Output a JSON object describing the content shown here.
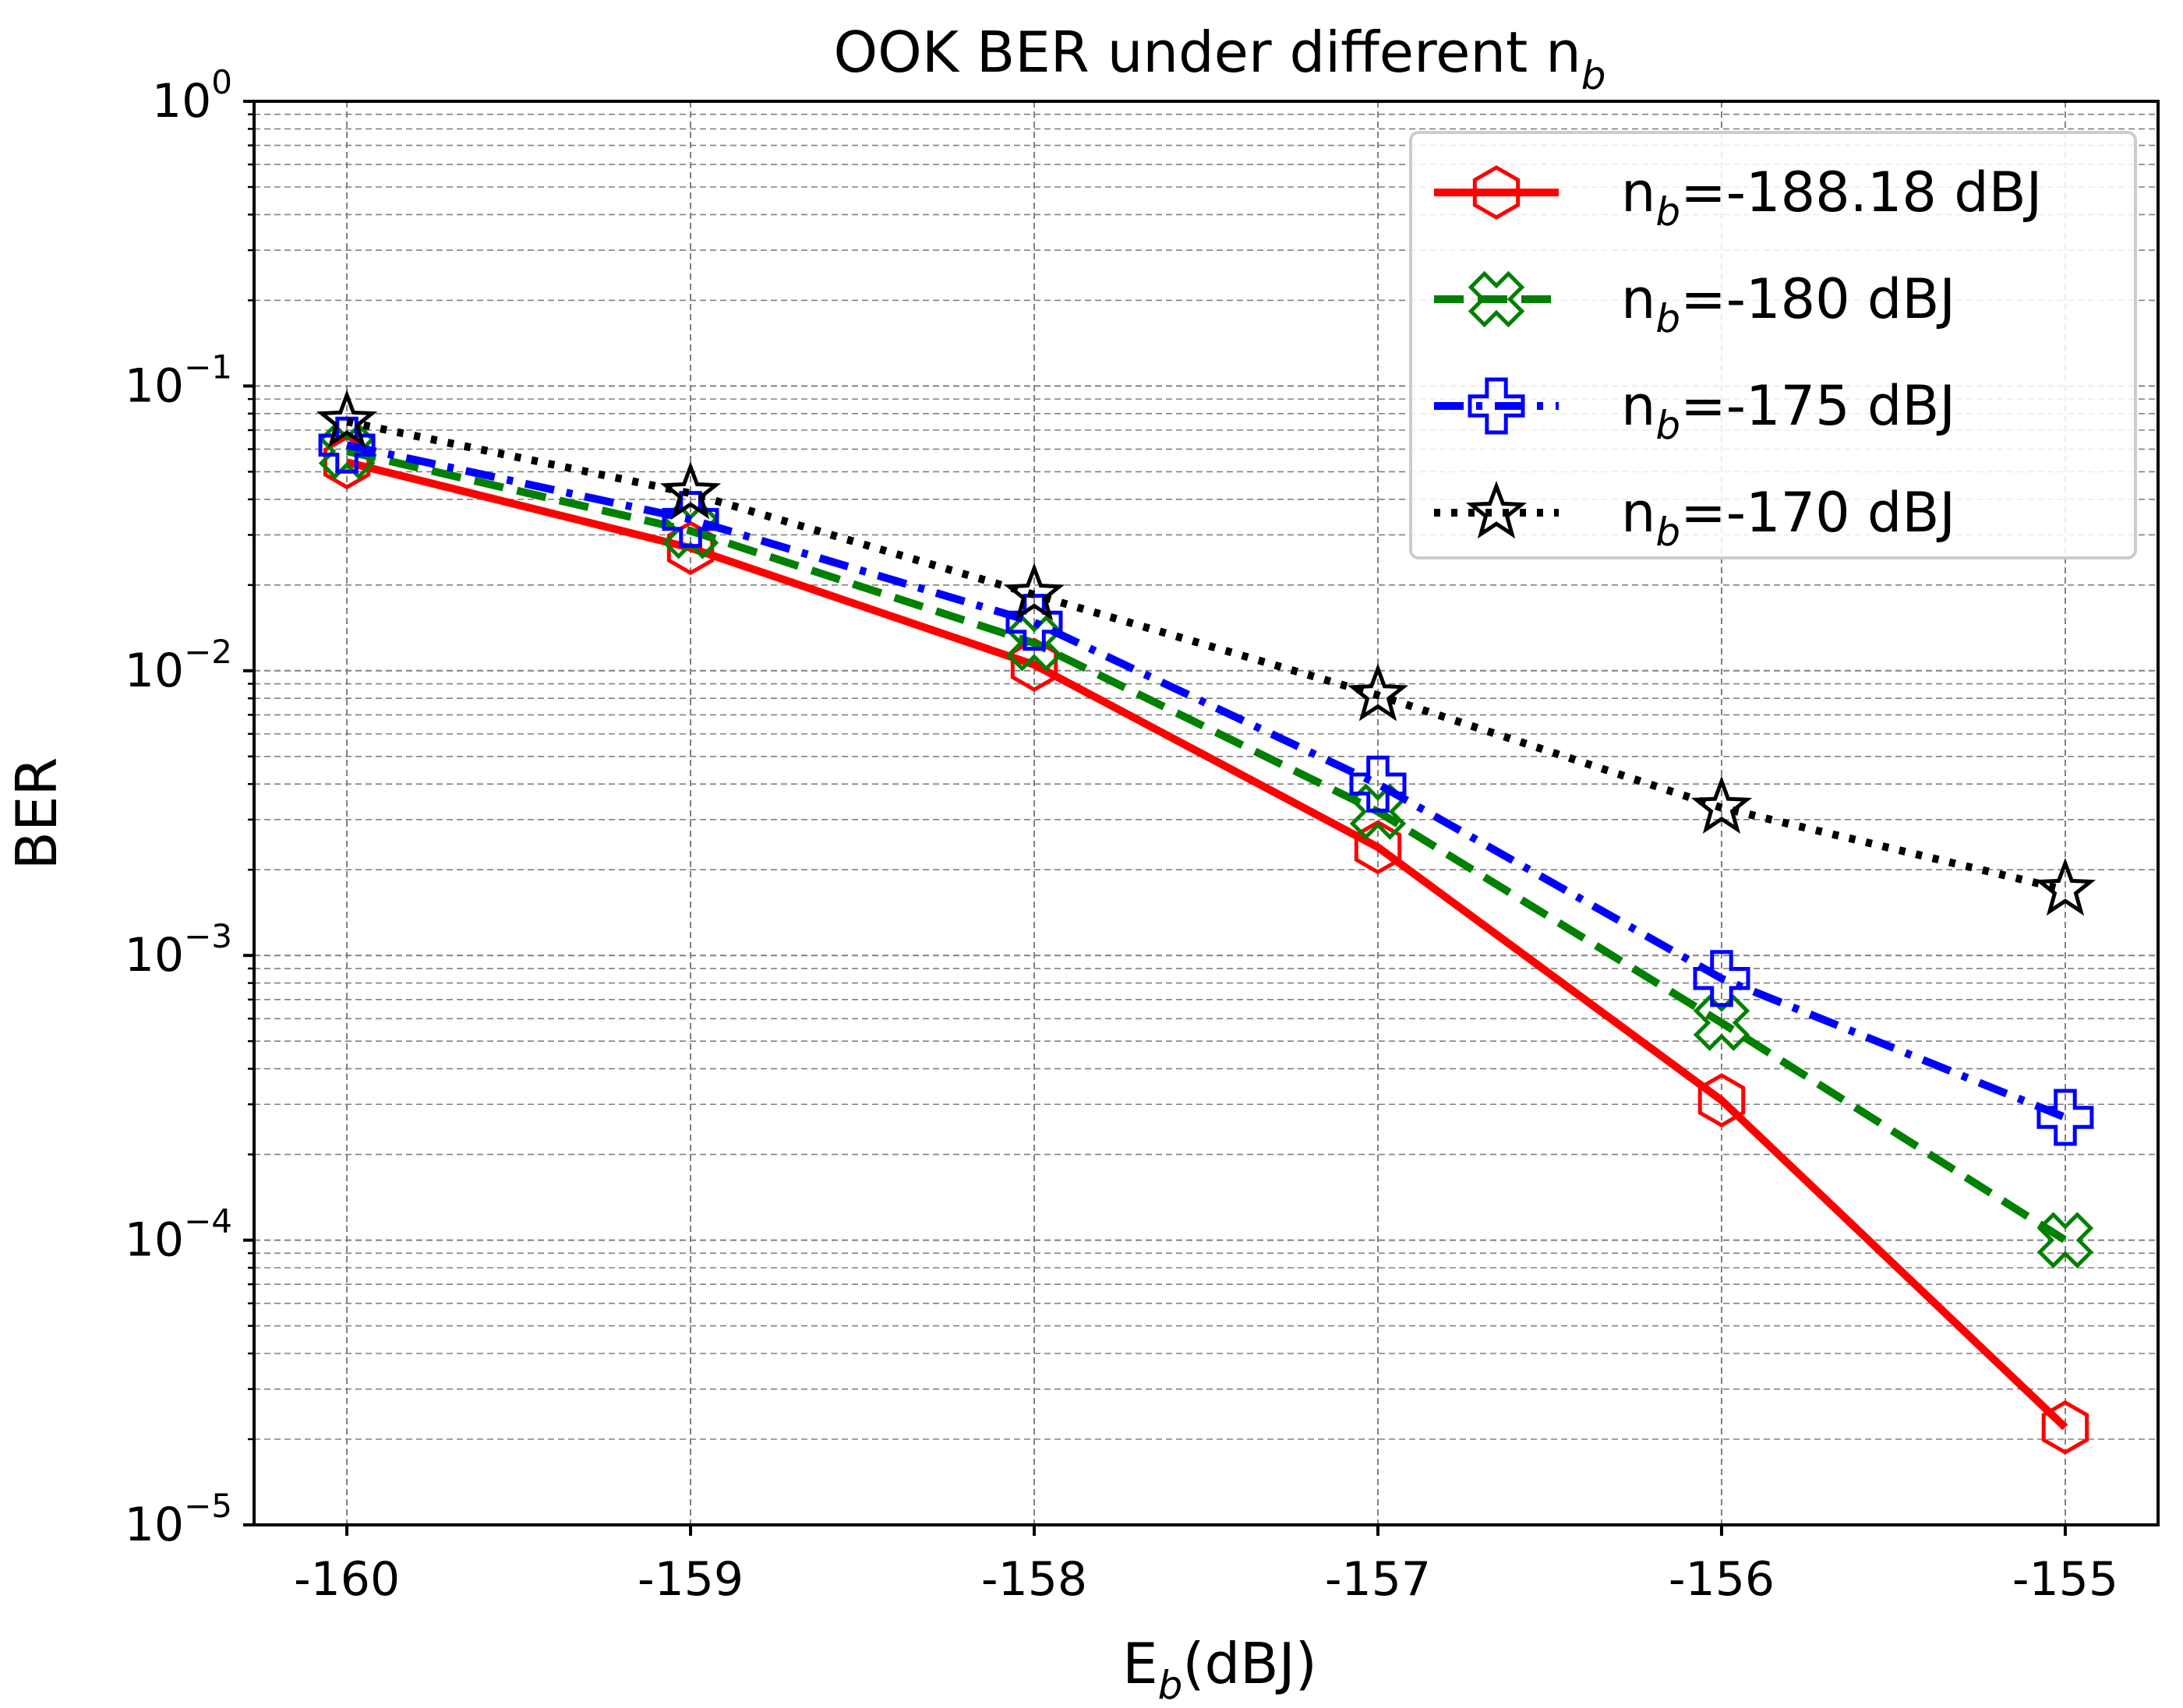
{
  "chart_data": {
    "type": "line",
    "title": {
      "main": "OOK BER under different n",
      "sub": "b"
    },
    "xlabel": {
      "main": "E",
      "sub": "b",
      "rest": "(dBJ)"
    },
    "ylabel": "BER",
    "yscale": "log",
    "x": [
      -160,
      -159,
      -158,
      -157,
      -156,
      -155
    ],
    "xlim": [
      -160.27,
      -154.73
    ],
    "ylim": [
      1e-05,
      1
    ],
    "xticks": [
      "-160",
      "-159",
      "-158",
      "-157",
      "-156",
      "-155"
    ],
    "yticks": [
      {
        "value": 1,
        "base": "10",
        "exp": "0"
      },
      {
        "value": 0.1,
        "base": "10",
        "exp": "−1"
      },
      {
        "value": 0.01,
        "base": "10",
        "exp": "−2"
      },
      {
        "value": 0.001,
        "base": "10",
        "exp": "−3"
      },
      {
        "value": 0.0001,
        "base": "10",
        "exp": "−4"
      },
      {
        "value": 1e-05,
        "base": "10",
        "exp": "−5"
      }
    ],
    "grid": true,
    "legend_position": "top-right",
    "series": [
      {
        "name": "n_b=-188.18 dBJ",
        "label_main": "n",
        "label_sub": "b",
        "label_rest": "=-188.18 dBJ",
        "color": "#ff0000",
        "linestyle": "solid",
        "marker": "hexagon",
        "values": [
          0.054,
          0.027,
          0.0105,
          0.0024,
          0.00031,
          2.2e-05
        ]
      },
      {
        "name": "n_b=-180 dBJ",
        "label_main": "n",
        "label_sub": "b",
        "label_rest": "=-180 dBJ",
        "color": "#008000",
        "linestyle": "dashed",
        "marker": "x-cross",
        "values": [
          0.059,
          0.031,
          0.0125,
          0.0032,
          0.00058,
          0.0001
        ]
      },
      {
        "name": "n_b=-175 dBJ",
        "label_main": "n",
        "label_sub": "b",
        "label_rest": "=-175 dBJ",
        "color": "#0000ff",
        "linestyle": "dashdot",
        "marker": "plus",
        "values": [
          0.062,
          0.034,
          0.0148,
          0.004,
          0.00083,
          0.00027
        ]
      },
      {
        "name": "n_b=-170 dBJ",
        "label_main": "n",
        "label_sub": "b",
        "label_rest": "=-170 dBJ",
        "color": "#000000",
        "linestyle": "dotted",
        "marker": "star",
        "values": [
          0.075,
          0.042,
          0.0185,
          0.0082,
          0.0033,
          0.0017
        ]
      }
    ]
  }
}
